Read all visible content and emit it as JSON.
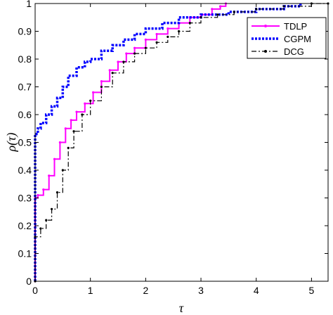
{
  "chart_data": {
    "type": "line",
    "title": "",
    "xlabel": "τ",
    "ylabel": "ρ(τ)",
    "xlim": [
      0,
      5.3
    ],
    "ylim": [
      0,
      1
    ],
    "xticks": [
      "0",
      "1",
      "2",
      "3",
      "4",
      "5"
    ],
    "yticks": [
      "0",
      "0.1",
      "0.2",
      "0.3",
      "0.4",
      "0.5",
      "0.6",
      "0.7",
      "0.8",
      "0.9",
      "1"
    ],
    "grid": false,
    "legend_position": "top-right",
    "series": [
      {
        "name": "TDLP",
        "color": "#ff00ff",
        "style": "solid-star-markers",
        "points": [
          [
            0,
            0
          ],
          [
            0,
            0.3
          ],
          [
            0.05,
            0.31
          ],
          [
            0.15,
            0.33
          ],
          [
            0.25,
            0.38
          ],
          [
            0.35,
            0.44
          ],
          [
            0.45,
            0.5
          ],
          [
            0.55,
            0.55
          ],
          [
            0.65,
            0.58
          ],
          [
            0.75,
            0.61
          ],
          [
            0.9,
            0.64
          ],
          [
            1.05,
            0.68
          ],
          [
            1.2,
            0.72
          ],
          [
            1.35,
            0.76
          ],
          [
            1.5,
            0.79
          ],
          [
            1.65,
            0.82
          ],
          [
            1.8,
            0.84
          ],
          [
            2.0,
            0.87
          ],
          [
            2.2,
            0.89
          ],
          [
            2.4,
            0.91
          ],
          [
            2.6,
            0.93
          ],
          [
            2.8,
            0.95
          ],
          [
            3.0,
            0.96
          ],
          [
            3.2,
            0.98
          ],
          [
            3.35,
            0.99
          ],
          [
            3.45,
            1.0
          ]
        ]
      },
      {
        "name": "CGPM",
        "color": "#0000ff",
        "style": "thick-dotted",
        "points": [
          [
            0,
            0
          ],
          [
            0,
            0.53
          ],
          [
            0.05,
            0.55
          ],
          [
            0.1,
            0.57
          ],
          [
            0.2,
            0.6
          ],
          [
            0.3,
            0.63
          ],
          [
            0.4,
            0.66
          ],
          [
            0.5,
            0.7
          ],
          [
            0.6,
            0.74
          ],
          [
            0.75,
            0.77
          ],
          [
            0.9,
            0.79
          ],
          [
            1.0,
            0.8
          ],
          [
            1.2,
            0.83
          ],
          [
            1.4,
            0.85
          ],
          [
            1.6,
            0.87
          ],
          [
            1.8,
            0.89
          ],
          [
            2.0,
            0.91
          ],
          [
            2.3,
            0.93
          ],
          [
            2.6,
            0.95
          ],
          [
            3.0,
            0.96
          ],
          [
            3.5,
            0.97
          ],
          [
            4.0,
            0.98
          ],
          [
            4.5,
            0.99
          ],
          [
            4.8,
            1.0
          ]
        ]
      },
      {
        "name": "DCG",
        "color": "#000000",
        "style": "dash-dot-markers",
        "points": [
          [
            0,
            0
          ],
          [
            0,
            0.16
          ],
          [
            0.1,
            0.19
          ],
          [
            0.2,
            0.22
          ],
          [
            0.3,
            0.26
          ],
          [
            0.4,
            0.32
          ],
          [
            0.5,
            0.4
          ],
          [
            0.6,
            0.48
          ],
          [
            0.7,
            0.54
          ],
          [
            0.85,
            0.6
          ],
          [
            1.0,
            0.65
          ],
          [
            1.2,
            0.7
          ],
          [
            1.4,
            0.75
          ],
          [
            1.6,
            0.79
          ],
          [
            1.8,
            0.82
          ],
          [
            2.0,
            0.84
          ],
          [
            2.2,
            0.86
          ],
          [
            2.4,
            0.88
          ],
          [
            2.6,
            0.9
          ],
          [
            2.8,
            0.93
          ],
          [
            3.0,
            0.95
          ],
          [
            3.3,
            0.96
          ],
          [
            3.6,
            0.97
          ],
          [
            4.0,
            0.98
          ],
          [
            4.5,
            0.99
          ],
          [
            5.0,
            1.0
          ],
          [
            5.3,
            1.0
          ]
        ]
      }
    ]
  }
}
